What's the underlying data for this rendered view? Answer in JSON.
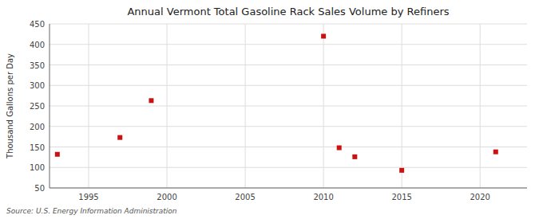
{
  "chart_data": {
    "type": "scatter",
    "title": "Annual Vermont Total Gasoline Rack Sales Volume by Refiners",
    "y_label": "Thousand Gallons per Day",
    "source": "Source: U.S. Energy Information Administration",
    "x": [
      1993,
      1997,
      1999,
      2010,
      2011,
      2012,
      2015,
      2021
    ],
    "values": [
      132,
      173,
      263,
      420,
      148,
      126,
      93,
      138
    ],
    "color": "#cc1111",
    "marker": "square",
    "xlim": [
      1992.5,
      2023
    ],
    "xticks": [
      1995,
      2000,
      2005,
      2010,
      2015,
      2020
    ],
    "ylim": [
      50,
      450
    ],
    "yticks": [
      50,
      100,
      150,
      200,
      250,
      300,
      350,
      400,
      450
    ],
    "grid": true
  }
}
